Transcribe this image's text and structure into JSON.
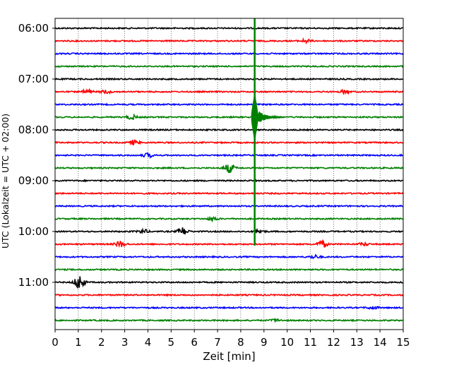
{
  "chart_data": {
    "type": "line",
    "title": "",
    "xlabel": "Zeit  [min]",
    "ylabel": "UTC (Lokalzeit = UTC + 02:00)",
    "xlim": [
      0,
      15
    ],
    "x_ticks": [
      "0",
      "1",
      "2",
      "3",
      "4",
      "5",
      "6",
      "7",
      "8",
      "9",
      "10",
      "11",
      "12",
      "13",
      "14",
      "15"
    ],
    "grid": "vertical dotted lines at every minute",
    "y_ticks": [
      "06:00",
      "07:00",
      "08:00",
      "09:00",
      "10:00",
      "11:00"
    ],
    "colors": [
      "#000000",
      "#ff0000",
      "#0000ff",
      "#008000"
    ],
    "traces": [
      {
        "time": "06:00",
        "color": "#000000",
        "events": []
      },
      {
        "time": "06:15",
        "color": "#ff0000",
        "events": [
          {
            "x": 10.8,
            "amp": 0.3
          }
        ]
      },
      {
        "time": "06:30",
        "color": "#0000ff",
        "events": []
      },
      {
        "time": "06:45",
        "color": "#008000",
        "events": []
      },
      {
        "time": "07:00",
        "color": "#000000",
        "events": []
      },
      {
        "time": "07:15",
        "color": "#ff0000",
        "events": [
          {
            "x": 1.4,
            "amp": 0.35
          },
          {
            "x": 2.2,
            "amp": 0.3
          },
          {
            "x": 12.5,
            "amp": 0.3
          }
        ]
      },
      {
        "time": "07:30",
        "color": "#0000ff",
        "events": []
      },
      {
        "time": "07:45",
        "color": "#008000",
        "events": [
          {
            "x": 3.3,
            "amp": 0.4
          }
        ]
      },
      {
        "time": "08:00",
        "color": "#000000",
        "events": []
      },
      {
        "time": "08:15",
        "color": "#ff0000",
        "events": [
          {
            "x": 3.4,
            "amp": 0.4
          }
        ]
      },
      {
        "time": "08:30",
        "color": "#0000ff",
        "events": [
          {
            "x": 4.0,
            "amp": 0.35
          }
        ]
      },
      {
        "time": "08:45",
        "color": "#008000",
        "events": [
          {
            "x": 7.5,
            "amp": 0.8
          }
        ]
      },
      {
        "time": "09:00",
        "color": "#000000",
        "events": []
      },
      {
        "time": "09:15",
        "color": "#ff0000",
        "events": []
      },
      {
        "time": "09:30",
        "color": "#0000ff",
        "events": []
      },
      {
        "time": "09:45",
        "color": "#008000",
        "events": [
          {
            "x": 6.8,
            "amp": 0.3
          }
        ]
      },
      {
        "time": "10:00",
        "color": "#000000",
        "events": [
          {
            "x": 3.8,
            "amp": 0.35
          },
          {
            "x": 5.5,
            "amp": 0.7
          },
          {
            "x": 8.8,
            "amp": 0.3
          }
        ]
      },
      {
        "time": "10:15",
        "color": "#ff0000",
        "events": [
          {
            "x": 2.8,
            "amp": 0.5
          },
          {
            "x": 11.5,
            "amp": 0.6
          },
          {
            "x": 13.3,
            "amp": 0.25
          }
        ]
      },
      {
        "time": "10:30",
        "color": "#0000ff",
        "events": [
          {
            "x": 11.2,
            "amp": 0.3
          }
        ]
      },
      {
        "time": "10:45",
        "color": "#008000",
        "events": []
      },
      {
        "time": "11:00",
        "color": "#000000",
        "events": [
          {
            "x": 1.05,
            "amp": 1.3
          }
        ]
      },
      {
        "time": "11:15",
        "color": "#ff0000",
        "events": []
      },
      {
        "time": "11:30",
        "color": "#0000ff",
        "events": [
          {
            "x": 13.7,
            "amp": 0.25
          }
        ]
      },
      {
        "time": "11:45",
        "color": "#008000",
        "events": [
          {
            "x": 9.5,
            "amp": 0.25
          }
        ]
      }
    ],
    "main_event": {
      "x_min": 8.6,
      "color": "#008000",
      "start_time": "06:00",
      "end_time": "10:15",
      "coda_time": "07:45"
    }
  }
}
